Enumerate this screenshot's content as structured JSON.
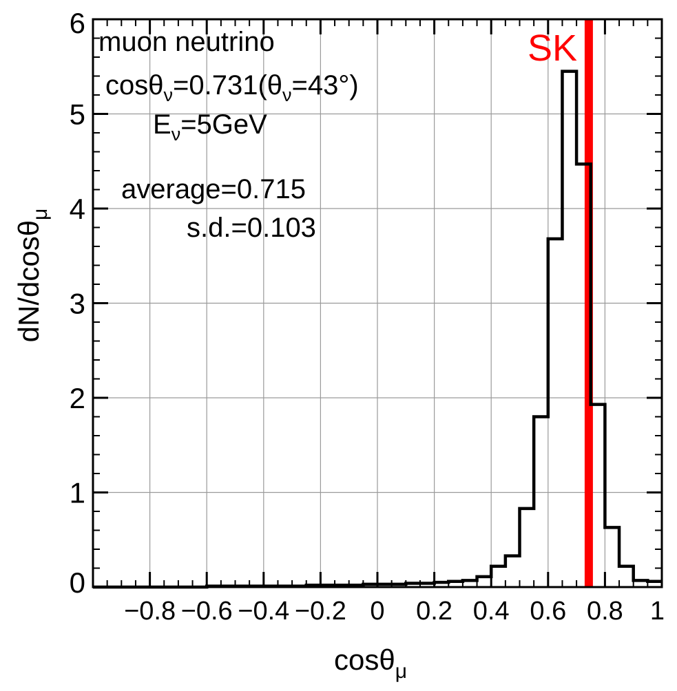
{
  "chart_data": {
    "type": "bar",
    "style": "step-histogram",
    "title": "",
    "xlabel": {
      "base": "cosθ",
      "sub": "μ"
    },
    "ylabel": {
      "base": "dN/dcosθ",
      "sub": "μ"
    },
    "xlim": [
      -1.0,
      1.0
    ],
    "ylim": [
      0,
      6
    ],
    "xticks": [
      -0.8,
      -0.6,
      -0.4,
      -0.2,
      0,
      0.2,
      0.4,
      0.6,
      0.8,
      1
    ],
    "xtick_labels": [
      "−0.8",
      "−0.6",
      "−0.4",
      "−0.2",
      "0",
      "0.2",
      "0.4",
      "0.6",
      "0.8",
      "1"
    ],
    "yticks": [
      0,
      1,
      2,
      3,
      4,
      5,
      6
    ],
    "ytick_labels": [
      "0",
      "1",
      "2",
      "3",
      "4",
      "5",
      "6"
    ],
    "grid": true,
    "bin_width": 0.05,
    "bin_edges_start": -1.0,
    "values": [
      0,
      0,
      0,
      0,
      0,
      0,
      0,
      0,
      0.01,
      0.01,
      0.01,
      0.01,
      0.01,
      0.01,
      0.01,
      0.02,
      0.02,
      0.02,
      0.02,
      0.03,
      0.03,
      0.03,
      0.04,
      0.04,
      0.05,
      0.06,
      0.07,
      0.11,
      0.22,
      0.33,
      0.83,
      1.8,
      3.68,
      5.45,
      4.47,
      1.93,
      0.63,
      0.22,
      0.07,
      0.06
    ],
    "series": [
      {
        "color": "#000000"
      }
    ],
    "vertical_line": {
      "x": 0.731,
      "label": "SK",
      "color": "#ff0000"
    },
    "annotations": {
      "line1": "muon neutrino",
      "line2": {
        "a": "cosθ",
        "a_sub": "ν",
        "b": "=0.731(θ",
        "b_sub": "ν",
        "c": "=43°)"
      },
      "line3": {
        "a": "E",
        "a_sub": "ν",
        "b": "=5GeV"
      },
      "line4": "average=0.715",
      "line5": "s.d.=0.103"
    }
  }
}
